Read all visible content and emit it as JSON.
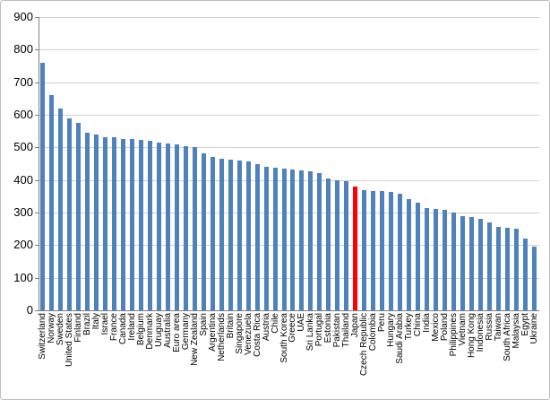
{
  "chart_data": {
    "type": "bar",
    "title": "",
    "xlabel": "",
    "ylabel": "",
    "legend": "none",
    "grid": true,
    "ylim": [
      0,
      900
    ],
    "ytick_step": 100,
    "bar_color": "#4f81bd",
    "highlight_color": "#ff0000",
    "highlight_category": "Japan",
    "highlight_index": 35,
    "categories": [
      "Switzerland",
      "Norway",
      "Sweden",
      "United States",
      "Finland",
      "Brazil",
      "Italy",
      "Israel",
      "France",
      "Canada",
      "Ireland",
      "Belgium",
      "Denmark",
      "Uruguay",
      "Australia",
      "Euro area",
      "Germany",
      "New Zealand",
      "Spain",
      "Argentina",
      "Netherlands",
      "Britain",
      "Singapore",
      "Venezuela",
      "Costa Rica",
      "Austria",
      "Chile",
      "South Korea",
      "Greece",
      "UAE",
      "Sri Lanka",
      "Portugal",
      "Estonia",
      "Pakistan",
      "Thailand",
      "Japan",
      "Czech Republic",
      "Colombia",
      "Peru",
      "Hungary",
      "Saudi Arabia",
      "Turkey",
      "China",
      "India",
      "Mexico",
      "Poland",
      "Philippines",
      "Vietnam",
      "Hong Kong",
      "Indonesia",
      "Russia",
      "Taiwan",
      "South Africa",
      "Malaysia",
      "Egypt",
      "Ukraine"
    ],
    "values": [
      760,
      660,
      620,
      590,
      575,
      545,
      540,
      532,
      530,
      527,
      525,
      522,
      520,
      516,
      512,
      508,
      505,
      500,
      483,
      470,
      465,
      462,
      460,
      458,
      450,
      440,
      437,
      435,
      432,
      430,
      426,
      420,
      405,
      400,
      395,
      380,
      370,
      367,
      365,
      362,
      357,
      340,
      330,
      315,
      310,
      307,
      300,
      290,
      287,
      280,
      270,
      257,
      252,
      250,
      220,
      195
    ]
  }
}
